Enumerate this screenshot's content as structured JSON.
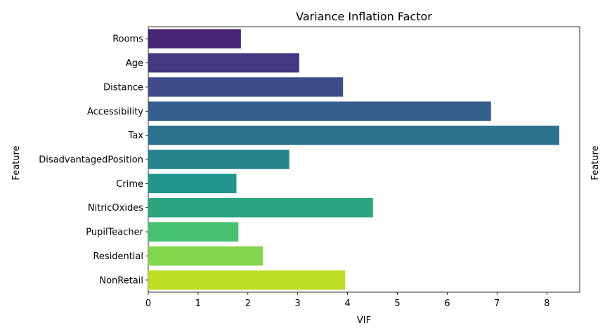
{
  "chart_data": {
    "type": "bar",
    "orientation": "horizontal",
    "title": "Variance Inflation Factor",
    "xlabel": "VIF",
    "ylabel": "Feature",
    "secondary_ylabel": "Feature",
    "xlim": [
      0,
      8.66
    ],
    "xticks": [
      0,
      1,
      2,
      3,
      4,
      5,
      6,
      7,
      8
    ],
    "categories": [
      "Rooms",
      "Age",
      "Distance",
      "Accessibility",
      "Tax",
      "DisadvantagedPosition",
      "Crime",
      "NitricOxides",
      "PupilTeacher",
      "Residential",
      "NonRetail"
    ],
    "values": [
      1.86,
      3.03,
      3.91,
      6.88,
      8.25,
      2.83,
      1.77,
      4.51,
      1.81,
      2.3,
      3.95
    ],
    "colors": [
      "#482475",
      "#453781",
      "#3e4c8a",
      "#35608d",
      "#2c718e",
      "#25838e",
      "#1f958b",
      "#2ba57f",
      "#47c16e",
      "#84d44b",
      "#bddf26"
    ],
    "grid": false,
    "legend": ""
  }
}
